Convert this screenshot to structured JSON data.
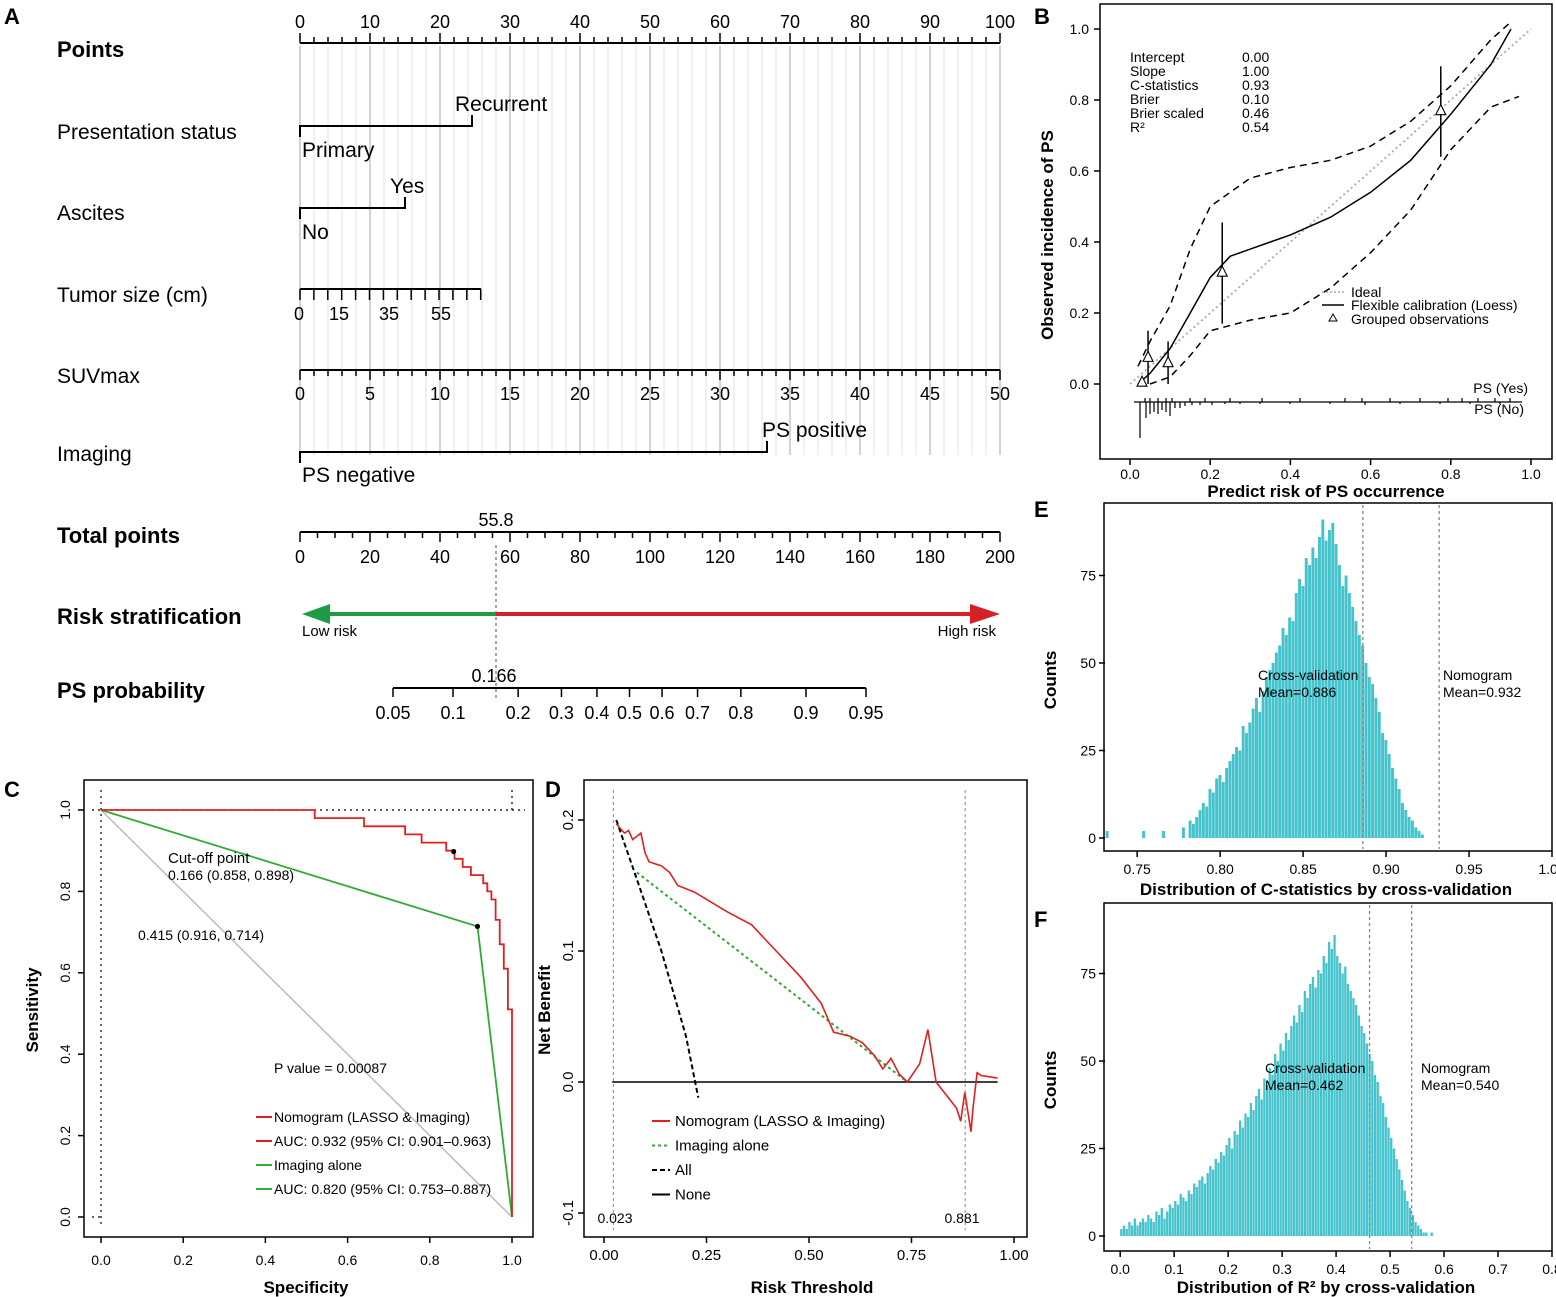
{
  "panels": {
    "A": "A",
    "B": "B",
    "C": "C",
    "D": "D",
    "E": "E",
    "F": "F"
  },
  "nomogram": {
    "rows": {
      "points": "Points",
      "presentation": "Presentation status",
      "ascites": "Ascites",
      "tumor": "Tumor size (cm)",
      "suv": "SUVmax",
      "imaging": "Imaging",
      "total": "Total points",
      "risk": "Risk stratification",
      "prob": "PS probability"
    },
    "points_ticks": [
      "0",
      "10",
      "20",
      "30",
      "40",
      "50",
      "60",
      "70",
      "80",
      "90",
      "100"
    ],
    "presentation_levels": {
      "primary": "Primary",
      "recurrent": "Recurrent",
      "recurrent_points": 24.5
    },
    "ascites_levels": {
      "no": "No",
      "yes": "Yes",
      "yes_points": 15
    },
    "tumor_labels": [
      "0",
      "15",
      "35",
      "55"
    ],
    "suv_ticks": [
      "0",
      "5",
      "10",
      "15",
      "20",
      "25",
      "30",
      "35",
      "40",
      "45",
      "50"
    ],
    "imaging_levels": {
      "negative": "PS negative",
      "positive": "PS positive",
      "positive_points": 66.5
    },
    "total_ticks": [
      "0",
      "20",
      "40",
      "60",
      "80",
      "100",
      "120",
      "140",
      "160",
      "180",
      "200"
    ],
    "total_value": "55.8",
    "risk_low": "Low risk",
    "risk_high": "High risk",
    "prob_ticks": [
      "0.05",
      "0.1",
      "0.2",
      "0.3",
      "0.4",
      "0.5",
      "0.6",
      "0.7",
      "0.8",
      "0.9",
      "0.95"
    ],
    "prob_value": "0.166"
  },
  "calibration": {
    "ylabel": "Observed incidence of PS",
    "xlabel": "Predict risk of PS occurrence",
    "xticks": [
      "0.0",
      "0.2",
      "0.4",
      "0.6",
      "0.8",
      "1.0"
    ],
    "yticks": [
      "0.0",
      "0.2",
      "0.4",
      "0.6",
      "0.8",
      "1.0"
    ],
    "stats": [
      {
        "name": "Intercept",
        "value": "0.00"
      },
      {
        "name": "Slope",
        "value": "1.00"
      },
      {
        "name": "C-statistics",
        "value": "0.93"
      },
      {
        "name": "Brier",
        "value": "0.10"
      },
      {
        "name": "Brier scaled",
        "value": "0.46"
      },
      {
        "name": "R²",
        "value": "0.54"
      }
    ],
    "legend": {
      "ideal": "Ideal",
      "flex": "Flexible calibration (Loess)",
      "grouped": "Grouped observations"
    },
    "ps_yes": "PS (Yes)",
    "ps_no": "PS (No)",
    "grouped_points": [
      {
        "x": 0.03,
        "y": 0.005,
        "lo": 0.0,
        "hi": 0.0
      },
      {
        "x": 0.045,
        "y": 0.075,
        "lo": 0.0,
        "hi": 0.15
      },
      {
        "x": 0.095,
        "y": 0.06,
        "lo": 0.0,
        "hi": 0.12
      },
      {
        "x": 0.23,
        "y": 0.315,
        "lo": 0.17,
        "hi": 0.455
      },
      {
        "x": 0.775,
        "y": 0.77,
        "lo": 0.64,
        "hi": 0.895
      }
    ],
    "loess": [
      [
        0.02,
        0.0
      ],
      [
        0.05,
        0.03
      ],
      [
        0.1,
        0.1
      ],
      [
        0.15,
        0.2
      ],
      [
        0.2,
        0.3
      ],
      [
        0.25,
        0.36
      ],
      [
        0.3,
        0.38
      ],
      [
        0.35,
        0.4
      ],
      [
        0.4,
        0.42
      ],
      [
        0.5,
        0.47
      ],
      [
        0.6,
        0.54
      ],
      [
        0.7,
        0.63
      ],
      [
        0.8,
        0.76
      ],
      [
        0.9,
        0.9
      ],
      [
        0.95,
        1.0
      ]
    ],
    "upper": [
      [
        0.02,
        0.05
      ],
      [
        0.05,
        0.12
      ],
      [
        0.1,
        0.22
      ],
      [
        0.15,
        0.38
      ],
      [
        0.2,
        0.5
      ],
      [
        0.3,
        0.58
      ],
      [
        0.4,
        0.61
      ],
      [
        0.5,
        0.63
      ],
      [
        0.6,
        0.67
      ],
      [
        0.7,
        0.74
      ],
      [
        0.8,
        0.84
      ],
      [
        0.9,
        0.97
      ],
      [
        0.95,
        1.02
      ]
    ],
    "lower": [
      [
        0.05,
        0.0
      ],
      [
        0.1,
        0.02
      ],
      [
        0.15,
        0.08
      ],
      [
        0.2,
        0.15
      ],
      [
        0.3,
        0.18
      ],
      [
        0.4,
        0.2
      ],
      [
        0.5,
        0.27
      ],
      [
        0.6,
        0.37
      ],
      [
        0.7,
        0.49
      ],
      [
        0.8,
        0.66
      ],
      [
        0.9,
        0.78
      ],
      [
        0.97,
        0.81
      ]
    ]
  },
  "roc": {
    "xlabel": "Specificity",
    "ylabel": "Sensitivity",
    "xticks": [
      "1.0",
      "0.8",
      "0.6",
      "0.4",
      "0.2",
      "0.0"
    ],
    "yticks": [
      "0.0",
      "0.2",
      "0.4",
      "0.6",
      "0.8",
      "1.0"
    ],
    "pvalue": "P value = 0.00087",
    "cutoff_label": "Cut-off point",
    "cutoff_value": "0.166 (0.858, 0.898)",
    "point2": "0.415 (0.916, 0.714)",
    "legend": [
      {
        "label": "Nomogram (LASSO & Imaging)",
        "color": "#e02020"
      },
      {
        "label": "AUC: 0.932 (95% CI: 0.901–0.963)",
        "color": "#e02020"
      },
      {
        "label": "Imaging alone",
        "color": "#33aa33"
      },
      {
        "label": "AUC: 0.820 (95% CI: 0.753–0.887)",
        "color": "#33aa33"
      }
    ],
    "nomogram_curve": [
      [
        1,
        0
      ],
      [
        1,
        0.51
      ],
      [
        0.99,
        0.51
      ],
      [
        0.99,
        0.61
      ],
      [
        0.98,
        0.61
      ],
      [
        0.98,
        0.67
      ],
      [
        0.97,
        0.67
      ],
      [
        0.97,
        0.73
      ],
      [
        0.96,
        0.73
      ],
      [
        0.96,
        0.78
      ],
      [
        0.95,
        0.78
      ],
      [
        0.95,
        0.8
      ],
      [
        0.94,
        0.8
      ],
      [
        0.94,
        0.82
      ],
      [
        0.93,
        0.82
      ],
      [
        0.93,
        0.84
      ],
      [
        0.9,
        0.84
      ],
      [
        0.9,
        0.86
      ],
      [
        0.88,
        0.86
      ],
      [
        0.88,
        0.88
      ],
      [
        0.86,
        0.88
      ],
      [
        0.86,
        0.9
      ],
      [
        0.84,
        0.9
      ],
      [
        0.84,
        0.92
      ],
      [
        0.78,
        0.92
      ],
      [
        0.78,
        0.94
      ],
      [
        0.74,
        0.94
      ],
      [
        0.74,
        0.96
      ],
      [
        0.64,
        0.96
      ],
      [
        0.64,
        0.98
      ],
      [
        0.52,
        0.98
      ],
      [
        0.52,
        1.0
      ],
      [
        0,
        1.0
      ]
    ],
    "imaging_curve": [
      [
        1,
        0
      ],
      [
        0.916,
        0.714
      ],
      [
        0,
        1
      ]
    ]
  },
  "dca": {
    "xlabel": "Risk Threshold",
    "ylabel": "Net Benefit",
    "xticks": [
      "0.00",
      "0.25",
      "0.50",
      "0.75",
      "1.00"
    ],
    "yticks": [
      "-0.1",
      "0.0",
      "0.1",
      "0.2"
    ],
    "v1": "0.023",
    "v2": "0.881",
    "legend": [
      {
        "label": "Nomogram (LASSO & Imaging)",
        "color": "#e02020"
      },
      {
        "label": "Imaging alone",
        "color": "#33aa33"
      },
      {
        "label": "All",
        "color": "#000000"
      },
      {
        "label": "None",
        "color": "#000000"
      }
    ],
    "nomogram_curve": [
      [
        0.03,
        0.197
      ],
      [
        0.05,
        0.19
      ],
      [
        0.06,
        0.192
      ],
      [
        0.07,
        0.185
      ],
      [
        0.09,
        0.19
      ],
      [
        0.1,
        0.175
      ],
      [
        0.11,
        0.168
      ],
      [
        0.14,
        0.165
      ],
      [
        0.16,
        0.16
      ],
      [
        0.18,
        0.15
      ],
      [
        0.22,
        0.145
      ],
      [
        0.3,
        0.13
      ],
      [
        0.36,
        0.12
      ],
      [
        0.42,
        0.1
      ],
      [
        0.48,
        0.08
      ],
      [
        0.53,
        0.06
      ],
      [
        0.56,
        0.038
      ],
      [
        0.6,
        0.035
      ],
      [
        0.63,
        0.03
      ],
      [
        0.66,
        0.02
      ],
      [
        0.68,
        0.01
      ],
      [
        0.7,
        0.018
      ],
      [
        0.72,
        0.006
      ],
      [
        0.74,
        0.0
      ],
      [
        0.77,
        0.014
      ],
      [
        0.79,
        0.04
      ],
      [
        0.81,
        0.0
      ],
      [
        0.84,
        -0.012
      ],
      [
        0.86,
        -0.02
      ],
      [
        0.87,
        -0.03
      ],
      [
        0.88,
        -0.008
      ],
      [
        0.895,
        -0.038
      ],
      [
        0.9,
        -0.02
      ],
      [
        0.91,
        0.007
      ],
      [
        0.92,
        0.005
      ],
      [
        0.96,
        0.003
      ]
    ],
    "imaging_curve": [
      [
        0.08,
        0.16
      ],
      [
        0.74,
        0.0
      ]
    ],
    "all_curve": [
      [
        0.03,
        0.2
      ],
      [
        0.08,
        0.155
      ],
      [
        0.14,
        0.1
      ],
      [
        0.2,
        0.035
      ],
      [
        0.23,
        -0.012
      ]
    ],
    "none_curve": [
      [
        0.02,
        0.0
      ],
      [
        0.96,
        0.0
      ]
    ]
  },
  "hist_c": {
    "xlabel": "Distribution of C-statistics by cross-validation",
    "ylabel": "Counts",
    "xticks": [
      "0.75",
      "0.80",
      "0.85",
      "0.90",
      "0.95",
      "1.00"
    ],
    "yticks": [
      "0",
      "25",
      "50",
      "75"
    ],
    "cv_label": "Cross-validation",
    "cv_mean": "Mean=0.886",
    "nomo_label": "Nomogram",
    "nomo_mean": "Mean=0.932",
    "color": "#45c3cc",
    "x_min": 0.73,
    "x_max": 1.0,
    "bin_width": 0.002,
    "x_start": 0.731,
    "heights": [
      2,
      0,
      0,
      0,
      0,
      0,
      0,
      0,
      0,
      0,
      0,
      2,
      0,
      0,
      0,
      0,
      0,
      2,
      0,
      0,
      0,
      0,
      0,
      3,
      0,
      5,
      4,
      6,
      8,
      10,
      9,
      14,
      13,
      17,
      18,
      16,
      20,
      22,
      24,
      26,
      25,
      32,
      30,
      33,
      37,
      40,
      36,
      42,
      46,
      48,
      50,
      53,
      55,
      60,
      58,
      63,
      62,
      70,
      74,
      72,
      80,
      78,
      83,
      80,
      86,
      91,
      85,
      88,
      90,
      84,
      78,
      72,
      75,
      70,
      66,
      62,
      58,
      55,
      50,
      46,
      44,
      40,
      36,
      30,
      28,
      24,
      20,
      17,
      14,
      10,
      8,
      6,
      5,
      3,
      2,
      1,
      0,
      0,
      0,
      0
    ]
  },
  "hist_r": {
    "xlabel": "Distribution of R² by cross-validation",
    "ylabel": "Counts",
    "xticks": [
      "0.0",
      "0.1",
      "0.2",
      "0.3",
      "0.4",
      "0.5",
      "0.6",
      "0.7",
      "0.8"
    ],
    "yticks": [
      "0",
      "25",
      "50",
      "75"
    ],
    "cv_label": "Cross-validation",
    "cv_mean": "Mean=0.462",
    "nomo_label": "Nomogram",
    "nomo_mean": "Mean=0.540",
    "color": "#45c3cc",
    "x_min": -0.03,
    "x_max": 0.8,
    "bin_width": 0.005,
    "x_start": 0.0,
    "heights": [
      2,
      3,
      2,
      4,
      3,
      5,
      3,
      4,
      5,
      4,
      6,
      5,
      4,
      7,
      6,
      8,
      5,
      7,
      9,
      8,
      10,
      9,
      12,
      11,
      10,
      13,
      12,
      15,
      14,
      16,
      17,
      15,
      18,
      20,
      19,
      22,
      21,
      24,
      23,
      26,
      28,
      25,
      30,
      29,
      33,
      31,
      35,
      34,
      38,
      36,
      40,
      42,
      39,
      45,
      43,
      48,
      46,
      52,
      50,
      55,
      53,
      58,
      56,
      60,
      63,
      61,
      66,
      64,
      70,
      68,
      72,
      74,
      71,
      76,
      75,
      80,
      78,
      84,
      82,
      86,
      80,
      78,
      75,
      77,
      72,
      70,
      68,
      66,
      63,
      60,
      58,
      55,
      52,
      50,
      46,
      44,
      40,
      38,
      34,
      31,
      28,
      25,
      22,
      19,
      16,
      13,
      10,
      8,
      6,
      4,
      3,
      2,
      1,
      1,
      0,
      1
    ]
  }
}
